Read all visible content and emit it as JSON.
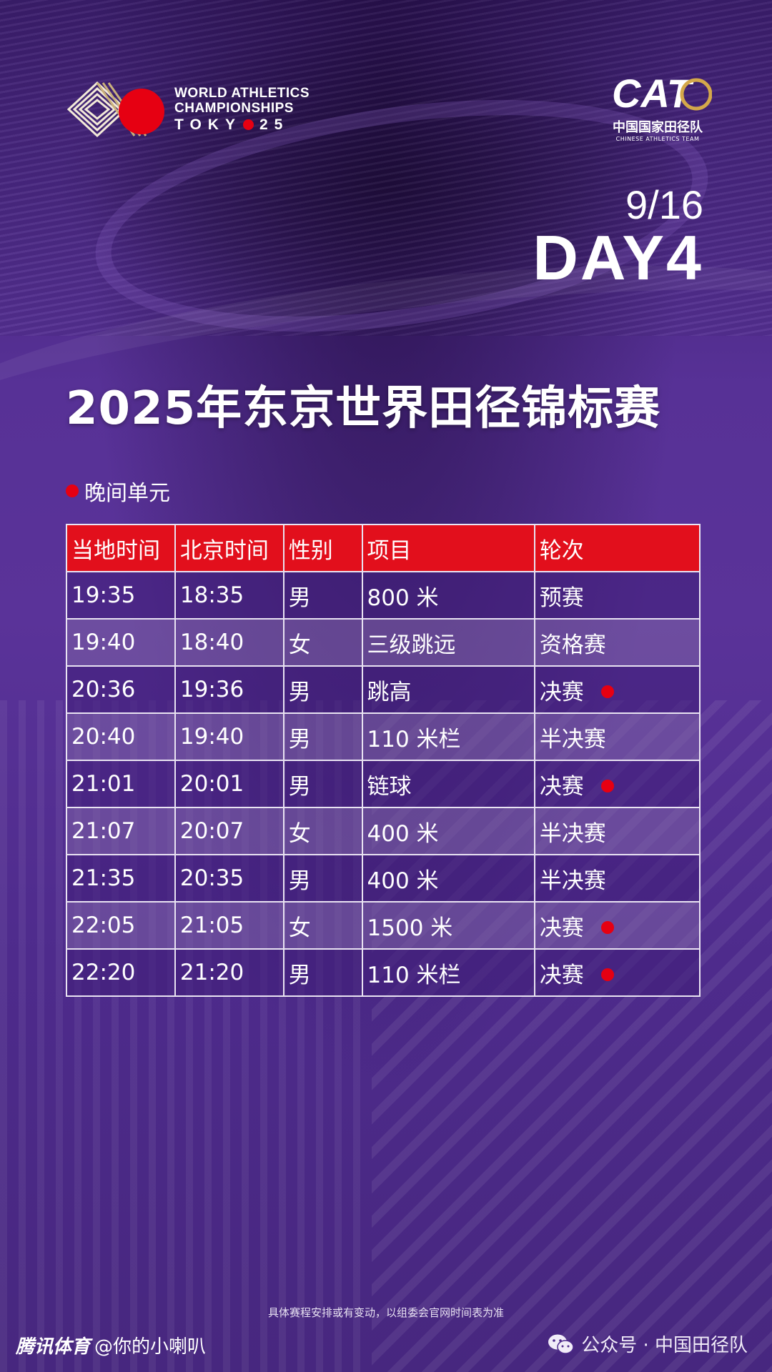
{
  "header": {
    "wa_logo": {
      "line1": "WORLD ATHLETICS",
      "line2": "CHAMPIONSHIPS",
      "line3_left": "TOKY",
      "line3_right": "25"
    },
    "cat_logo": {
      "mark": "CAT",
      "cn": "中国国家田径队",
      "en": "CHINESE ATHLETICS TEAM"
    },
    "date": "9/16",
    "day": "DAY4"
  },
  "title": "2025年东京世界田径锦标赛",
  "session": {
    "label": "晚间单元"
  },
  "table": {
    "headers": [
      "当地时间",
      "北京时间",
      "性别",
      "项目",
      "轮次"
    ],
    "rows": [
      [
        "19:35",
        "18:35",
        "男",
        "800 米",
        "预赛"
      ],
      [
        "19:40",
        "18:40",
        "女",
        "三级跳远",
        "资格赛"
      ],
      [
        "20:36",
        "19:36",
        "男",
        "跳高",
        "决赛"
      ],
      [
        "20:40",
        "19:40",
        "男",
        "110 米栏",
        "半决赛"
      ],
      [
        "21:01",
        "20:01",
        "男",
        "链球",
        "决赛"
      ],
      [
        "21:07",
        "20:07",
        "女",
        "400 米",
        "半决赛"
      ],
      [
        "21:35",
        "20:35",
        "男",
        "400 米",
        "半决赛"
      ],
      [
        "22:05",
        "21:05",
        "女",
        "1500 米",
        "决赛"
      ],
      [
        "22:20",
        "21:20",
        "男",
        "110 米栏",
        "决赛"
      ]
    ],
    "final_marker_rows": [
      2,
      4,
      7,
      8
    ]
  },
  "footer": {
    "note": "具体赛程安排或有变动，以组委会官网时间表为准",
    "brand_bold": "腾讯体育",
    "brand_user": "@你的小喇叭",
    "wechat": "公众号 · 中国田径队"
  },
  "colors": {
    "accent_red": "#e60012",
    "header_red": "#e20f1c",
    "purple": "#4b2a86"
  },
  "icons": [
    "wechat-icon",
    "world-athletics-logo",
    "cat-logo"
  ]
}
